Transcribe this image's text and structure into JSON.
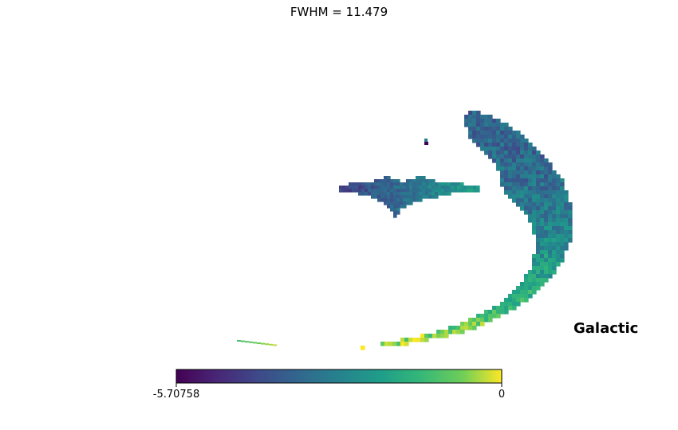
{
  "chart_data": {
    "type": "heatmap",
    "projection": "healpix mollview",
    "title": "FWHM = 11.479",
    "coord_system": "Galactic",
    "colormap": "viridis",
    "colorbar": {
      "orientation": "horizontal",
      "min": -5.70758,
      "max": 0,
      "min_label": "-5.70758",
      "max_label": "0"
    },
    "grid": false,
    "features": [
      {
        "name": "arc",
        "value_range": [
          -4.2,
          -0.3
        ]
      },
      {
        "name": "streak",
        "value_range": [
          -4.5,
          -2.0
        ]
      },
      {
        "name": "small-blob",
        "value_range": [
          -5.7,
          -3.0
        ]
      },
      {
        "name": "faint-tail",
        "value_range": [
          -1.2,
          -0.3
        ]
      }
    ]
  },
  "colors": {
    "viridis_low": "#440154",
    "viridis_mid": "#21918c",
    "viridis_high": "#fde725"
  }
}
